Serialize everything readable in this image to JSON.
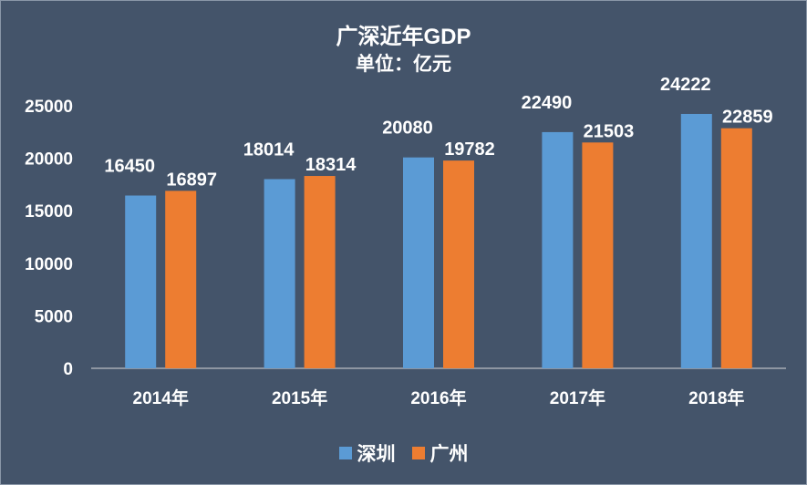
{
  "colors": {
    "background": "#44546a",
    "shenzhen": "#5b9bd5",
    "guangzhou": "#ed7d31",
    "text": "#ffffff"
  },
  "chart_data": {
    "type": "bar",
    "title": "广深近年GDP",
    "subtitle": "单位：亿元",
    "categories": [
      "2014年",
      "2015年",
      "2016年",
      "2017年",
      "2018年"
    ],
    "series": [
      {
        "name": "深圳",
        "color": "#5b9bd5",
        "values": [
          16450,
          18014,
          20080,
          22490,
          24222
        ]
      },
      {
        "name": "广州",
        "color": "#ed7d31",
        "values": [
          16897,
          18314,
          19782,
          21503,
          22859
        ]
      }
    ],
    "ylim": [
      0,
      25000
    ],
    "yticks": [
      "0",
      "5000",
      "10000",
      "15000",
      "20000",
      "25000"
    ],
    "xlabel": "",
    "ylabel": "",
    "grid": false,
    "legend_position": "bottom"
  }
}
